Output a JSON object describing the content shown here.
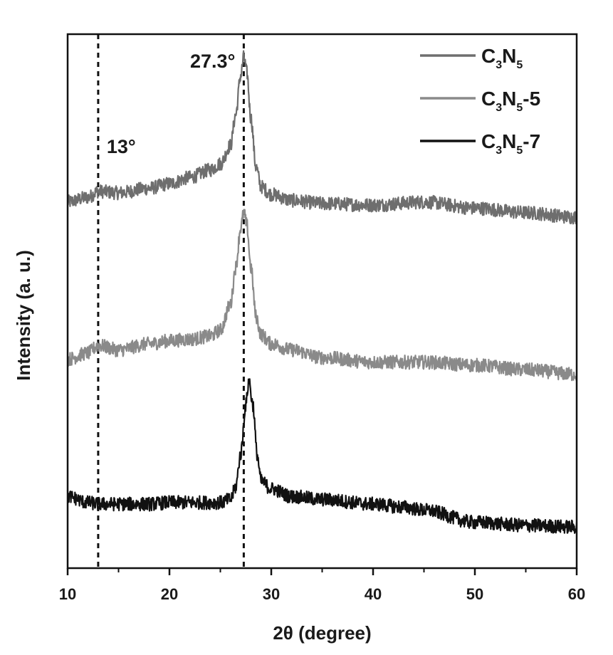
{
  "chart_data": {
    "type": "line",
    "title": "",
    "xlabel": "2θ (degree)",
    "ylabel": "Intensity (a. u.)",
    "xlim": [
      10,
      60
    ],
    "xticks": [
      10,
      20,
      30,
      40,
      50,
      60
    ],
    "yticks_shown": false,
    "legend_position": "top-right",
    "series": [
      {
        "name": "C3N5",
        "legend": {
          "base": "C",
          "sub1": "3",
          "mid": "N",
          "sub2": "5",
          "suffix": ""
        },
        "color": "#6e6e6e",
        "offset": 2.0,
        "x": [
          10,
          12,
          13,
          15,
          18,
          20,
          22,
          24,
          25,
          26,
          26.5,
          27,
          27.3,
          27.6,
          28,
          28.5,
          29,
          30,
          32,
          35,
          40,
          45,
          50,
          55,
          60
        ],
        "y": [
          0.05,
          0.08,
          0.12,
          0.11,
          0.14,
          0.17,
          0.21,
          0.26,
          0.3,
          0.42,
          0.62,
          0.88,
          1.0,
          0.9,
          0.6,
          0.28,
          0.15,
          0.1,
          0.06,
          0.04,
          0.03,
          0.05,
          0.01,
          -0.02,
          -0.05
        ]
      },
      {
        "name": "C3N5-5",
        "legend": {
          "base": "C",
          "sub1": "3",
          "mid": "N",
          "sub2": "5",
          "suffix": "-5"
        },
        "color": "#8a8a8a",
        "offset": 1.0,
        "x": [
          10,
          12,
          13,
          15,
          18,
          20,
          22,
          24,
          25,
          26,
          26.5,
          27,
          27.3,
          27.6,
          28,
          28.5,
          29,
          30,
          32,
          35,
          40,
          45,
          50,
          55,
          60
        ],
        "y": [
          0.02,
          0.06,
          0.11,
          0.08,
          0.12,
          0.14,
          0.15,
          0.17,
          0.21,
          0.38,
          0.62,
          0.88,
          0.98,
          0.9,
          0.62,
          0.3,
          0.18,
          0.12,
          0.08,
          0.03,
          0.0,
          0.0,
          -0.02,
          -0.05,
          -0.08
        ]
      },
      {
        "name": "C3N5-7",
        "legend": {
          "base": "C",
          "sub1": "3",
          "mid": "N",
          "sub2": "5",
          "suffix": "-7"
        },
        "color": "#111111",
        "offset": 0.0,
        "x": [
          10,
          12,
          13,
          15,
          18,
          20,
          22,
          24,
          25,
          26,
          26.5,
          27,
          27.5,
          27.8,
          28.2,
          28.6,
          29,
          30,
          32,
          35,
          40,
          43,
          45,
          50,
          55,
          60
        ],
        "y": [
          0.12,
          0.08,
          0.07,
          0.07,
          0.07,
          0.08,
          0.08,
          0.08,
          0.08,
          0.1,
          0.18,
          0.4,
          0.72,
          0.88,
          0.72,
          0.4,
          0.22,
          0.17,
          0.12,
          0.1,
          0.07,
          0.05,
          0.03,
          -0.05,
          -0.07,
          -0.08
        ]
      }
    ],
    "reference_lines": [
      {
        "x": 13,
        "label": "13°"
      },
      {
        "x": 27.3,
        "label": "27.3°"
      }
    ]
  }
}
